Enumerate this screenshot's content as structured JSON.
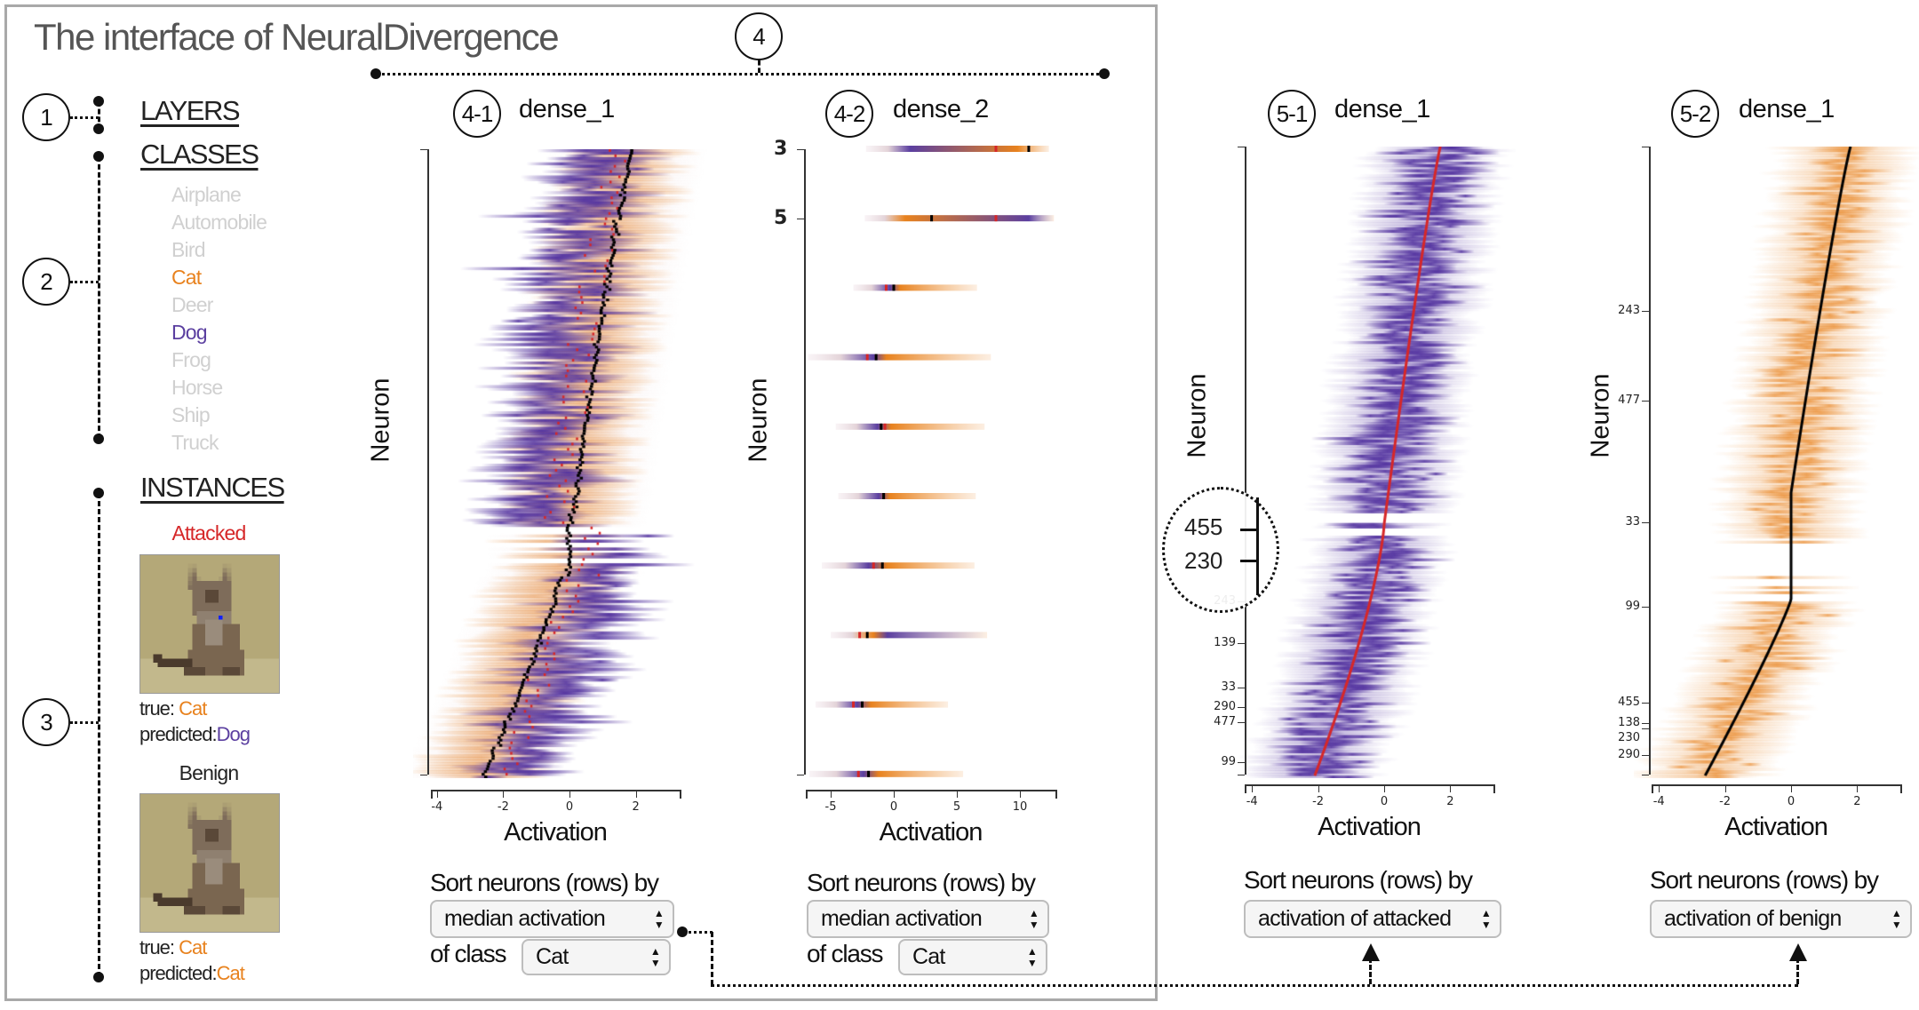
{
  "title": "The interface of NeuralDivergence",
  "annotations": {
    "a1": "1",
    "a2": "2",
    "a3": "3",
    "a4": "4"
  },
  "colors": {
    "cat": "#e8821e",
    "dog": "#5b3fa0",
    "attacked": "#d62728",
    "inactive": "#d0d0d0",
    "median": "#000000",
    "attacked_median": "#d62728"
  },
  "sidebar": {
    "layers": "LAYERS",
    "classes_heading": "CLASSES",
    "classes": [
      {
        "label": "Airplane",
        "state": "inactive"
      },
      {
        "label": "Automobile",
        "state": "inactive"
      },
      {
        "label": "Bird",
        "state": "inactive"
      },
      {
        "label": "Cat",
        "state": "true-class"
      },
      {
        "label": "Deer",
        "state": "inactive"
      },
      {
        "label": "Dog",
        "state": "predicted-class"
      },
      {
        "label": "Frog",
        "state": "inactive"
      },
      {
        "label": "Horse",
        "state": "inactive"
      },
      {
        "label": "Ship",
        "state": "inactive"
      },
      {
        "label": "Truck",
        "state": "inactive"
      }
    ],
    "instances_heading": "INSTANCES",
    "attacked": {
      "label": "Attacked",
      "true_label": "true:",
      "true_value": "Cat",
      "pred_label": "predicted:",
      "pred_value": "Dog"
    },
    "benign": {
      "label": "Benign",
      "true_label": "true:",
      "true_value": "Cat",
      "pred_label": "predicted:",
      "pred_value": "Cat"
    }
  },
  "views": [
    {
      "badge": "4-1",
      "title": "dense_1",
      "ylabel": "Neuron",
      "xlabel": "Activation",
      "xticks": [
        -4,
        -2,
        0,
        2
      ],
      "yticks": [],
      "sort_label": "Sort neurons (rows) by",
      "sort_value": "median activation",
      "class_label": "of class",
      "class_value": "Cat"
    },
    {
      "badge": "4-2",
      "title": "dense_2",
      "ylabel": "Neuron",
      "xlabel": "Activation",
      "xticks": [
        -5,
        0,
        5,
        10
      ],
      "yticks": [
        {
          "label": "3",
          "row": 0
        },
        {
          "label": "5",
          "row": 1
        }
      ],
      "sort_label": "Sort neurons (rows) by",
      "sort_value": "median activation",
      "class_label": "of class",
      "class_value": "Cat"
    },
    {
      "badge": "5-1",
      "title": "dense_1",
      "ylabel": "Neuron",
      "xlabel": "Activation",
      "xticks": [
        -4,
        -2,
        0,
        2
      ],
      "yticks": [
        {
          "label": "243",
          "row": 371
        },
        {
          "label": "139",
          "row": 405
        },
        {
          "label": "33",
          "row": 441
        },
        {
          "label": "290",
          "row": 457
        },
        {
          "label": "477",
          "row": 469
        },
        {
          "label": "99",
          "row": 502
        }
      ],
      "sort_label": "Sort neurons (rows) by",
      "sort_value": "activation of attacked"
    },
    {
      "badge": "5-2",
      "title": "dense_1",
      "ylabel": "Neuron",
      "xlabel": "Activation",
      "xticks": [
        -4,
        -2,
        0,
        2
      ],
      "yticks": [
        {
          "label": "243",
          "row": 134
        },
        {
          "label": "477",
          "row": 207
        },
        {
          "label": "33",
          "row": 306
        },
        {
          "label": "99",
          "row": 375
        },
        {
          "label": "455",
          "row": 453
        },
        {
          "label": "138",
          "row": 470
        },
        {
          "label": "230",
          "row": 474
        },
        {
          "label": "290",
          "row": 496
        }
      ],
      "sort_label": "Sort neurons (rows) by",
      "sort_value": "activation of benign"
    }
  ],
  "zoom_callout": {
    "labels": [
      "455",
      "230"
    ]
  },
  "chart_data": [
    {
      "type": "heatmap",
      "title": "dense_1",
      "xlabel": "Activation",
      "ylabel": "Neuron",
      "xlim": [
        -4.2,
        3.3
      ],
      "neurons": 512,
      "median_top": 1.9,
      "median_bottom": -2.6
    },
    {
      "type": "heatmap",
      "title": "dense_2",
      "xlabel": "Activation",
      "ylabel": "Neuron",
      "xlim": [
        -7,
        13
      ],
      "rows": [
        {
          "min": -2.2,
          "max": 12.3,
          "median": 10.7,
          "attacked": 8.1,
          "dog_peak": 1.3,
          "cat_peak": 9.8
        },
        {
          "min": -2.3,
          "max": 12.7,
          "median": 3.0,
          "attacked": 8.1,
          "dog_peak": 10.7,
          "cat_peak": 0.9
        },
        {
          "min": -3.2,
          "max": 6.6,
          "median": 0.0,
          "attacked": -0.6,
          "dog_peak": -0.3,
          "cat_peak": 0.5
        },
        {
          "min": -6.8,
          "max": 7.7,
          "median": -1.4,
          "attacked": -2.1,
          "dog_peak": -1.6,
          "cat_peak": -0.6
        },
        {
          "min": -4.6,
          "max": 7.2,
          "median": -1.0,
          "attacked": -0.7,
          "dog_peak": -1.3,
          "cat_peak": -0.2
        },
        {
          "min": -4.4,
          "max": 6.5,
          "median": -0.8,
          "attacked": -0.8,
          "dog_peak": -1.2,
          "cat_peak": -0.3
        },
        {
          "min": -5.7,
          "max": 6.4,
          "median": -0.9,
          "attacked": -1.6,
          "dog_peak": -2.0,
          "cat_peak": -0.5
        },
        {
          "min": -5.0,
          "max": 7.4,
          "median": -2.1,
          "attacked": -2.7,
          "dog_peak": -0.5,
          "cat_peak": -1.6
        },
        {
          "min": -6.2,
          "max": 4.3,
          "median": -2.5,
          "attacked": -3.2,
          "dog_peak": -2.9,
          "cat_peak": -1.8
        },
        {
          "min": -6.7,
          "max": 5.5,
          "median": -2.0,
          "attacked": -2.8,
          "dog_peak": -2.4,
          "cat_peak": -1.2
        }
      ]
    },
    {
      "type": "heatmap",
      "title": "dense_1",
      "xlabel": "Activation",
      "ylabel": "Neuron",
      "xlim": [
        -4.2,
        3.3
      ],
      "series": "attacked",
      "line_top": 1.7,
      "line_bottom": -2.1
    },
    {
      "type": "heatmap",
      "title": "dense_1",
      "xlabel": "Activation",
      "ylabel": "Neuron",
      "xlim": [
        -4.2,
        3.3
      ],
      "series": "benign",
      "line_top": 1.8,
      "line_bottom": -2.6
    }
  ]
}
